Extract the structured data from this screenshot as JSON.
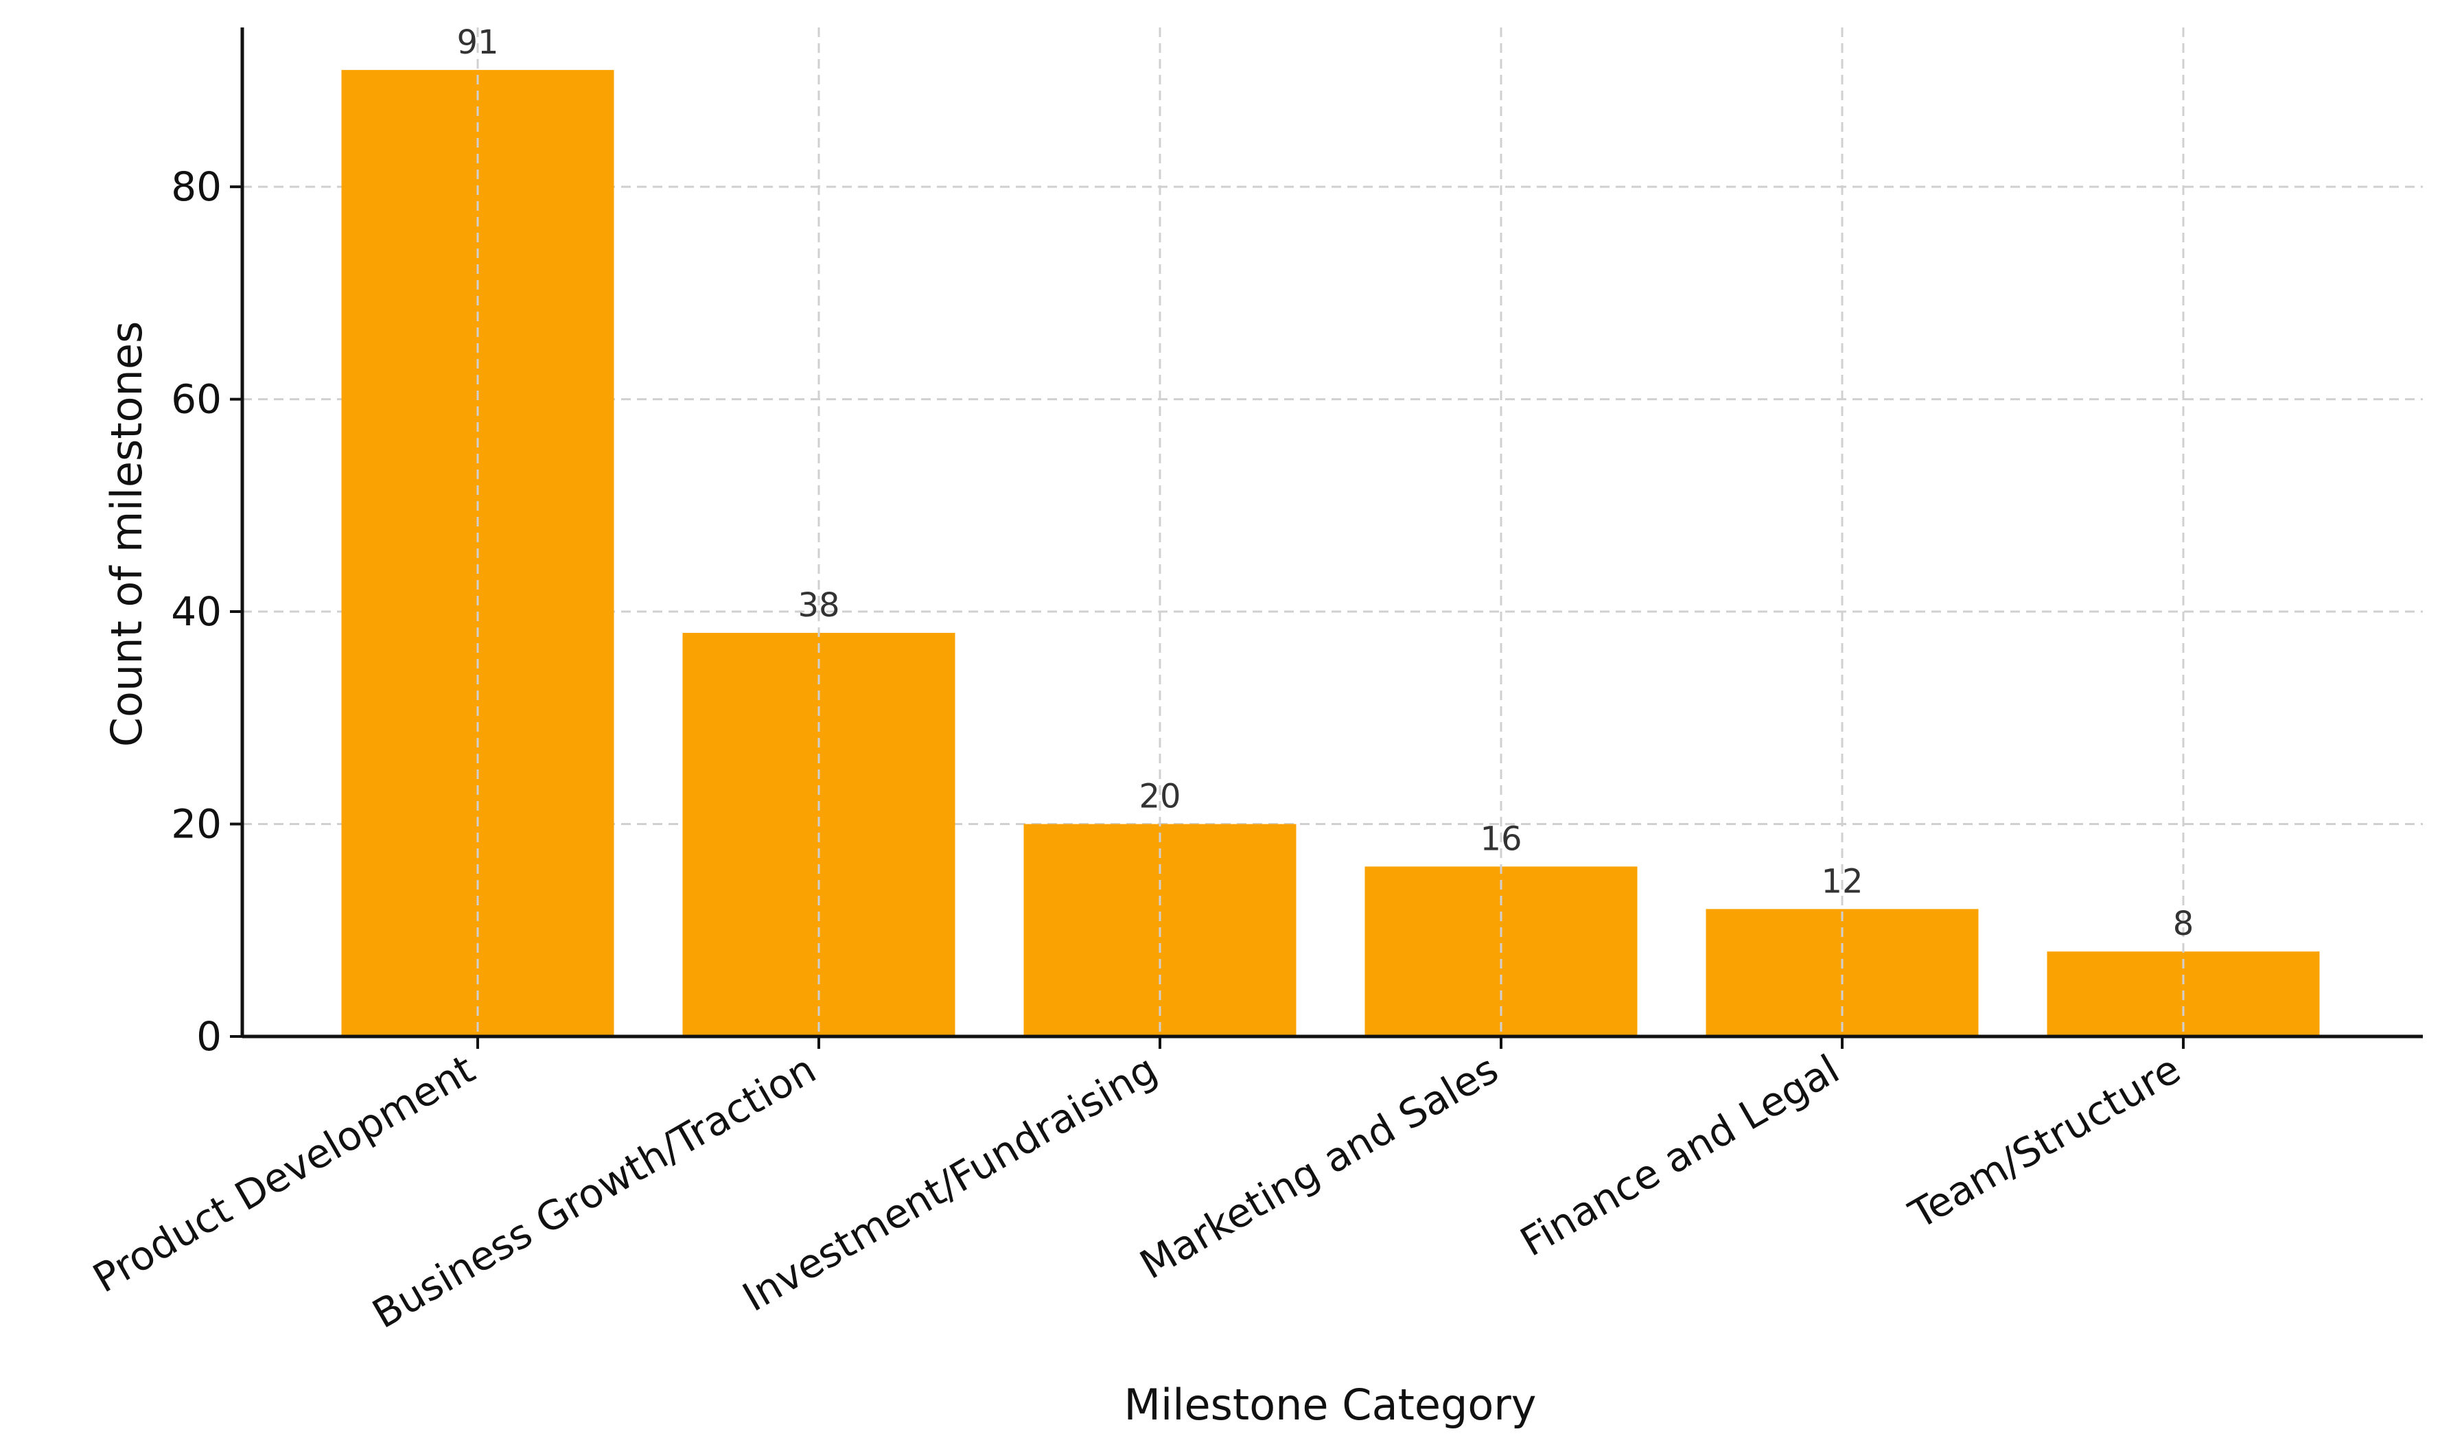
{
  "chart_data": {
    "type": "bar",
    "title": "",
    "xlabel": "Milestone Category",
    "ylabel": "Count of milestones",
    "categories": [
      "Product Development",
      "Business Growth/Traction",
      "Investment/Fundraising",
      "Marketing and Sales",
      "Finance and Legal",
      "Team/Structure"
    ],
    "values": [
      91,
      38,
      20,
      16,
      12,
      8
    ],
    "data_labels": [
      "91",
      "38",
      "20",
      "16",
      "12",
      "8"
    ],
    "ylim": [
      0,
      95
    ],
    "yticks": [
      0,
      20,
      40,
      60,
      80
    ],
    "ytick_labels": [
      "0",
      "20",
      "40",
      "60",
      "80"
    ],
    "grid": true,
    "legend": "none",
    "bar_color": "#FAA202"
  }
}
